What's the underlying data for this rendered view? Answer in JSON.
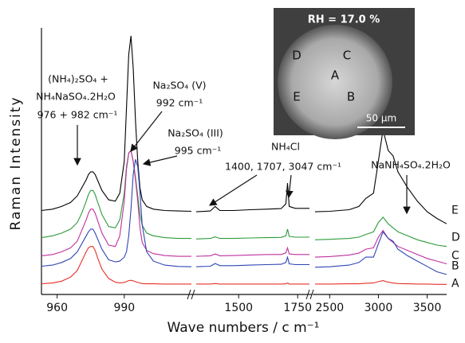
{
  "chart_data": {
    "type": "line",
    "ylabel": "Raman Intensity",
    "xlabel": "Wave numbers / c m⁻¹",
    "ylim": [
      0,
      100
    ],
    "segments": [
      {
        "xlim": [
          953,
          1020
        ],
        "xticks": [
          960,
          990
        ],
        "x": [
          953,
          958,
          962,
          966,
          969,
          971,
          973,
          974,
          975,
          976,
          977,
          978,
          980,
          983,
          986,
          988,
          990,
          991,
          992,
          993,
          994,
          995,
          996,
          997,
          998,
          1000,
          1003,
          1008,
          1014,
          1020
        ]
      },
      {
        "xlim": [
          1320,
          1800
        ],
        "xticks": [
          1500,
          1750
        ],
        "x": [
          1320,
          1380,
          1400,
          1420,
          1480,
          1550,
          1620,
          1680,
          1700,
          1707,
          1714,
          1740,
          1800
        ]
      },
      {
        "xlim": [
          2350,
          3700
        ],
        "xticks": [
          2500,
          3000,
          3500
        ],
        "x": [
          2350,
          2500,
          2700,
          2800,
          2870,
          2950,
          3000,
          3047,
          3100,
          3150,
          3200,
          3300,
          3400,
          3500,
          3600,
          3700
        ]
      }
    ],
    "series": [
      {
        "name": "E",
        "color": "#000000",
        "values": [
          [
            31.5,
            32,
            33,
            34.5,
            37,
            40,
            43,
            45,
            46,
            46,
            45,
            43,
            39,
            35.5,
            35,
            38,
            50,
            70,
            90,
            97,
            85,
            65,
            50,
            40,
            35.5,
            33,
            32,
            31.5,
            31.3,
            31.2
          ],
          [
            31,
            31.3,
            33,
            31.5,
            31.5,
            31.8,
            32,
            32.2,
            34,
            41.8,
            33,
            32.3,
            32.3
          ],
          [
            31,
            31.2,
            31.8,
            33,
            36,
            38,
            50,
            61.8,
            54,
            52,
            46,
            40,
            35,
            31,
            28.5,
            26.5
          ]
        ]
      },
      {
        "name": "D",
        "color": "#2e9b3a",
        "values": [
          [
            21.3,
            22,
            23,
            24.5,
            27,
            30.5,
            35,
            37.5,
            39,
            39,
            37.5,
            35,
            30,
            25.5,
            25,
            28,
            38,
            48,
            53,
            54,
            50,
            44,
            37,
            30,
            26,
            23,
            22,
            21.3,
            21,
            21
          ],
          [
            20.8,
            21,
            21.6,
            21,
            21,
            21.2,
            21.3,
            21.4,
            22,
            24.5,
            21.8,
            21.5,
            21.5
          ],
          [
            20.5,
            20.7,
            21,
            21.5,
            22.5,
            23.5,
            27,
            29,
            26.5,
            25,
            23.5,
            22,
            20.5,
            19.5,
            18.5,
            18
          ]
        ]
      },
      {
        "name": "C",
        "color": "#c0309f",
        "values": [
          [
            14.5,
            15,
            16,
            17.5,
            20,
            24,
            28,
            30.5,
            32,
            32,
            30.5,
            28,
            23,
            18.5,
            18,
            22,
            35,
            47,
            53,
            54,
            50,
            43,
            35,
            25,
            19.5,
            16.5,
            15.3,
            14.6,
            14.3,
            14.3
          ],
          [
            14.3,
            14.5,
            15.2,
            14.5,
            14.6,
            14.8,
            15,
            15,
            15.6,
            17.5,
            15.2,
            15,
            15
          ],
          [
            14,
            14.2,
            14.8,
            15.5,
            17,
            17.5,
            21.5,
            24,
            21,
            19.5,
            18,
            16.5,
            15,
            13.5,
            12.5,
            11.5
          ]
        ]
      },
      {
        "name": "B",
        "color": "#2f45b5",
        "values": [
          [
            10.6,
            11,
            12,
            13.5,
            16,
            19,
            22,
            23.5,
            24.5,
            24.5,
            23,
            21,
            17,
            13,
            12.2,
            12.5,
            14,
            16,
            22,
            32,
            45,
            50.7,
            48,
            38,
            26,
            16,
            12.5,
            11,
            10.5,
            10.4
          ],
          [
            10.4,
            10.6,
            11.6,
            10.8,
            10.8,
            11,
            11.2,
            11.3,
            12,
            14,
            11.5,
            11.2,
            11.2
          ],
          [
            10.2,
            10.4,
            11,
            12,
            14,
            14,
            19,
            23.5,
            21,
            20,
            17,
            14.5,
            12.5,
            10.5,
            8.5,
            7.5
          ]
        ]
      },
      {
        "name": "A",
        "color": "#e8312a",
        "values": [
          [
            4,
            4.3,
            5,
            6.5,
            9,
            12.5,
            16,
            17.5,
            18,
            18,
            16.5,
            14,
            9.5,
            6,
            4.6,
            4.3,
            4.5,
            4.8,
            5.2,
            5.3,
            5.1,
            4.8,
            4.5,
            4.3,
            4.1,
            4,
            4,
            3.9,
            3.9,
            3.9
          ],
          [
            3.9,
            3.9,
            4.1,
            3.9,
            3.9,
            3.9,
            3.9,
            3.9,
            4,
            4.3,
            3.9,
            3.9,
            3.9
          ],
          [
            3.9,
            3.9,
            4,
            4,
            4.2,
            4.3,
            4.8,
            5.2,
            4.6,
            4.3,
            4.1,
            4,
            3.9,
            3.9,
            3.8,
            3.8
          ]
        ]
      }
    ],
    "annotations": [
      "(NH₄)₂SO₄ +",
      "NH₄NaSO₄.2H₂O",
      "976 + 982 cm⁻¹",
      "Na₂SO₄ (V)",
      "992 cm⁻¹",
      "Na₂SO₄ (III)",
      "995 cm⁻¹",
      "NH₄Cl",
      "1400, 1707, 3047 cm⁻¹",
      "NaNH₄SO₄.2H₂O"
    ]
  },
  "inset": {
    "title": "RH = 17.0 %",
    "points": [
      "D",
      "C",
      "A",
      "E",
      "B"
    ],
    "scale": "50 µm"
  }
}
